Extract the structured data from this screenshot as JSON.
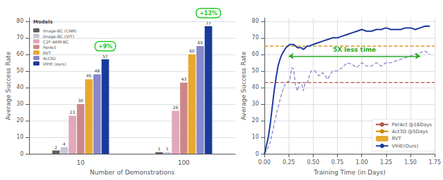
{
  "chart_data": [
    {
      "type": "bar",
      "categories": [
        "10",
        "100"
      ],
      "series": [
        {
          "name": "Image-BC (CNN)",
          "color": "#606060",
          "values": [
            2,
            1
          ]
        },
        {
          "name": "Image-BC (VIT)",
          "color": "#c8c8d8",
          "values": [
            4,
            1
          ]
        },
        {
          "name": "C2F-ARM-BC",
          "color": "#e0a8b8",
          "values": [
            23,
            26
          ]
        },
        {
          "name": "PerAct",
          "color": "#cc8888",
          "values": [
            30,
            43
          ]
        },
        {
          "name": "RVT",
          "color": "#e8a830",
          "values": [
            45,
            60
          ]
        },
        {
          "name": "Act3D",
          "color": "#8888cc",
          "values": [
            48,
            65
          ]
        },
        {
          "name": "VIHE (ours)",
          "color": "#1a3a9c",
          "values": [
            57,
            77
          ]
        }
      ],
      "xlabel": "Number of Demonstrations",
      "ylabel": "Average Success Rate",
      "ylim": [
        0,
        82
      ],
      "yticks": [
        0,
        10,
        20,
        30,
        40,
        50,
        60,
        70,
        80
      ],
      "grid": "y",
      "legend": "upper left",
      "legend_title": "Models",
      "data_labels": true,
      "annotations": [
        {
          "text": "+9%",
          "category": "10",
          "series": "VIHE (ours)",
          "color": "#22cc22"
        },
        {
          "text": "+12%",
          "category": "100",
          "series": "VIHE (ours)",
          "color": "#22cc22"
        }
      ]
    },
    {
      "type": "line",
      "xlabel": "Training Time (in Days)",
      "ylabel": "Average Success Rate",
      "xlim": [
        0,
        1.75
      ],
      "xticks": [
        {
          "value": 0,
          "label": "0.00"
        },
        0.25,
        {
          "value": 0.5,
          "label": "0.50"
        },
        0.75,
        {
          "value": 1,
          "label": "1.00"
        },
        1.25,
        {
          "value": 1.5,
          "label": "1.50"
        },
        1.75
      ],
      "ylim": [
        0,
        82
      ],
      "yticks": [
        0,
        10,
        20,
        30,
        40,
        50,
        60,
        70,
        80
      ],
      "grid": true,
      "legend": "lower right",
      "series": [
        {
          "name": "PerAct @16Days",
          "type": "hline",
          "color": "#b05545",
          "line_style": "dashed",
          "values": [
            43
          ]
        },
        {
          "name": "Act3D @5Days",
          "type": "hline",
          "color": "#cc8800",
          "line_style": "dashed",
          "values": [
            65
          ]
        },
        {
          "name": "RVT",
          "color": "#8888cc",
          "line_style": "dashed",
          "x": [
            0.0,
            0.02,
            0.04,
            0.06,
            0.08,
            0.1,
            0.14,
            0.18,
            0.22,
            0.26,
            0.28,
            0.3,
            0.32,
            0.34,
            0.36,
            0.38,
            0.4,
            0.42,
            0.44,
            0.48,
            0.52,
            0.56,
            0.6,
            0.65,
            0.7,
            0.75,
            0.8,
            0.85,
            0.9,
            0.95,
            1.0,
            1.05,
            1.1,
            1.15,
            1.2,
            1.25,
            1.3,
            1.35,
            1.4,
            1.45,
            1.5,
            1.55,
            1.6,
            1.65,
            1.7
          ],
          "values": [
            0,
            2,
            4,
            7,
            12,
            18,
            28,
            37,
            43,
            44,
            52,
            51,
            41,
            38,
            43,
            43,
            38,
            43,
            43,
            50,
            50,
            47,
            49,
            45,
            50,
            50,
            52,
            55,
            54,
            52,
            55,
            53,
            53,
            55,
            53,
            55,
            55,
            56,
            57,
            58,
            59,
            60,
            61,
            62,
            60
          ]
        },
        {
          "name": "VIHE(Ours)",
          "color": "#1a3a9c",
          "line_style": "solid",
          "x": [
            0.0,
            0.01,
            0.02,
            0.04,
            0.06,
            0.08,
            0.1,
            0.12,
            0.14,
            0.16,
            0.18,
            0.2,
            0.22,
            0.24,
            0.26,
            0.28,
            0.3,
            0.32,
            0.34,
            0.36,
            0.38,
            0.4,
            0.42,
            0.44,
            0.46,
            0.5,
            0.55,
            0.6,
            0.65,
            0.7,
            0.75,
            0.8,
            0.85,
            0.9,
            0.95,
            1.0,
            1.05,
            1.1,
            1.15,
            1.2,
            1.25,
            1.3,
            1.35,
            1.4,
            1.45,
            1.5,
            1.55,
            1.6,
            1.65,
            1.7
          ],
          "values": [
            0,
            2,
            5,
            10,
            18,
            28,
            38,
            46,
            53,
            57,
            60,
            62,
            64,
            65,
            66,
            66,
            66,
            65,
            64,
            64,
            64,
            63,
            64,
            65,
            65,
            66,
            67,
            68,
            69,
            70,
            70,
            71,
            72,
            73,
            74,
            75,
            74,
            74,
            75,
            75,
            76,
            75,
            75,
            75,
            76,
            76,
            75,
            76,
            77,
            77
          ]
        }
      ],
      "annotations": [
        {
          "text": "5X less time",
          "type": "double_arrow",
          "x": [
            0.25,
            1.6
          ],
          "y": 59,
          "color": "#22aa22"
        }
      ]
    }
  ]
}
